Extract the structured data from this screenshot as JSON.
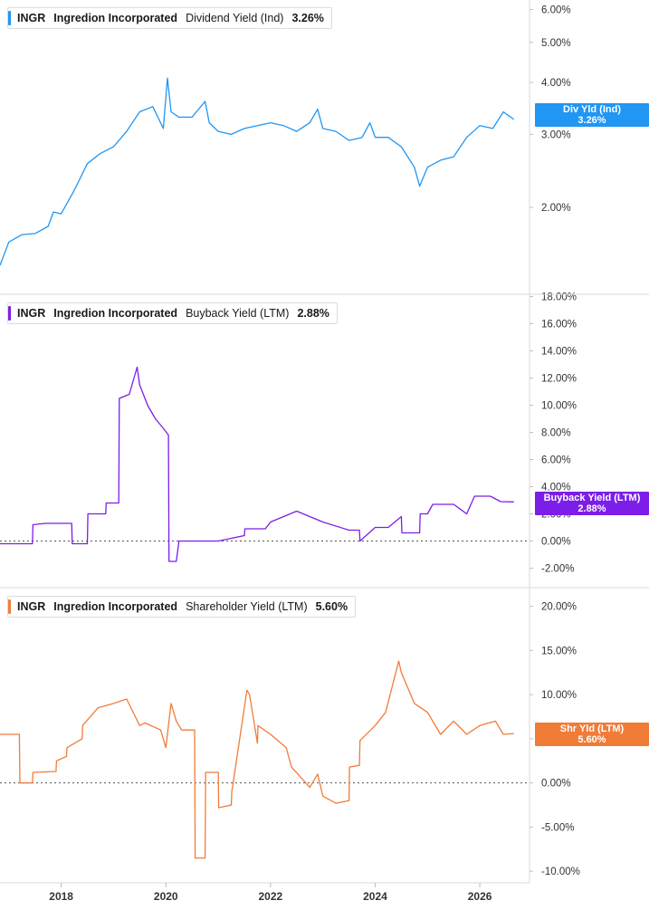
{
  "chart_data": [
    {
      "type": "line",
      "ticker": "INGR",
      "company": "Ingredion Incorporated",
      "metric": "Dividend Yield (Ind)",
      "current_value": "3.26%",
      "tag_label": "Div Yld (Ind)",
      "tag_value": "3.26%",
      "color": "#2196f3",
      "scale": "log",
      "ylim": [
        1.4,
        6.2
      ],
      "y_ticks": [
        2,
        3,
        4,
        5,
        6
      ],
      "y_tick_labels": [
        "2.00%",
        "3.00%",
        "4.00%",
        "5.00%",
        "6.00%"
      ],
      "zero_line": false,
      "x": [
        2016.83,
        2017.0,
        2017.25,
        2017.5,
        2017.75,
        2017.85,
        2018.0,
        2018.25,
        2018.5,
        2018.75,
        2019.0,
        2019.25,
        2019.5,
        2019.75,
        2019.95,
        2020.03,
        2020.1,
        2020.25,
        2020.5,
        2020.75,
        2020.83,
        2021.0,
        2021.25,
        2021.5,
        2021.75,
        2022.0,
        2022.25,
        2022.5,
        2022.75,
        2022.9,
        2023.0,
        2023.25,
        2023.5,
        2023.75,
        2023.9,
        2024.0,
        2024.25,
        2024.5,
        2024.75,
        2024.85,
        2025.0,
        2025.25,
        2025.5,
        2025.75,
        2026.0,
        2026.25,
        2026.45,
        2026.65
      ],
      "values": [
        1.45,
        1.65,
        1.72,
        1.73,
        1.8,
        1.95,
        1.93,
        2.2,
        2.55,
        2.7,
        2.8,
        3.05,
        3.4,
        3.5,
        3.1,
        4.1,
        3.4,
        3.3,
        3.3,
        3.6,
        3.2,
        3.05,
        3.0,
        3.1,
        3.15,
        3.2,
        3.15,
        3.05,
        3.2,
        3.45,
        3.1,
        3.05,
        2.9,
        2.95,
        3.2,
        2.95,
        2.95,
        2.8,
        2.5,
        2.25,
        2.5,
        2.6,
        2.65,
        2.95,
        3.15,
        3.1,
        3.4,
        3.26
      ],
      "x_ticks": [
        2018,
        2020,
        2022,
        2024,
        2026
      ],
      "x_tick_labels": [
        "2018",
        "2020",
        "2022",
        "2024",
        "2026"
      ]
    },
    {
      "type": "line",
      "ticker": "INGR",
      "company": "Ingredion Incorporated",
      "metric": "Buyback Yield (LTM)",
      "current_value": "2.88%",
      "tag_label": "Buyback Yield (LTM)",
      "tag_value": "2.88%",
      "color": "#7c1ee8",
      "scale": "linear",
      "ylim": [
        -2.7,
        18.3
      ],
      "y_ticks": [
        -2,
        0,
        2,
        4,
        6,
        8,
        10,
        12,
        14,
        16,
        18
      ],
      "y_tick_labels": [
        "-2.00%",
        "0.00%",
        "2.00%",
        "4.00%",
        "6.00%",
        "8.00%",
        "10.00%",
        "12.00%",
        "14.00%",
        "16.00%",
        "18.00%"
      ],
      "zero_line": true,
      "x": [
        2016.83,
        2017.45,
        2017.46,
        2017.7,
        2018.2,
        2018.21,
        2018.5,
        2018.51,
        2018.85,
        2018.86,
        2019.1,
        2019.11,
        2019.3,
        2019.45,
        2019.5,
        2019.65,
        2019.8,
        2019.95,
        2020.05,
        2020.06,
        2020.2,
        2020.25,
        2021.0,
        2021.5,
        2021.51,
        2021.9,
        2022.0,
        2022.25,
        2022.5,
        2022.75,
        2023.0,
        2023.5,
        2023.7,
        2023.71,
        2024.0,
        2024.25,
        2024.5,
        2024.51,
        2024.85,
        2024.86,
        2025.0,
        2025.1,
        2025.5,
        2025.75,
        2025.9,
        2026.2,
        2026.4,
        2026.65
      ],
      "values": [
        -0.2,
        -0.2,
        1.2,
        1.3,
        1.3,
        -0.2,
        -0.2,
        2.0,
        2.0,
        2.8,
        2.8,
        10.5,
        10.8,
        12.8,
        11.5,
        10.0,
        9.0,
        8.3,
        7.8,
        -1.5,
        -1.5,
        0.0,
        0.0,
        0.4,
        0.9,
        0.9,
        1.4,
        1.8,
        2.2,
        1.8,
        1.4,
        0.8,
        0.8,
        0.0,
        1.0,
        1.0,
        1.8,
        0.6,
        0.6,
        2.0,
        2.0,
        2.7,
        2.7,
        2.0,
        3.3,
        3.3,
        2.9,
        2.88
      ],
      "x_ticks": [
        2018,
        2020,
        2022,
        2024,
        2026
      ],
      "x_tick_labels": [
        "2018",
        "2020",
        "2022",
        "2024",
        "2026"
      ]
    },
    {
      "type": "line",
      "ticker": "INGR",
      "company": "Ingredion Incorporated",
      "metric": "Shareholder Yield (LTM)",
      "current_value": "5.60%",
      "tag_label": "Shr Yld (LTM)",
      "tag_value": "5.60%",
      "color": "#f07c38",
      "scale": "linear",
      "ylim": [
        -10.8,
        21.5
      ],
      "y_ticks": [
        -10,
        -5,
        0,
        5,
        10,
        15,
        20
      ],
      "y_tick_labels": [
        "-10.00%",
        "-5.00%",
        "0.00%",
        "5.00%",
        "10.00%",
        "15.00%",
        "20.00%"
      ],
      "zero_line": true,
      "x": [
        2016.83,
        2017.2,
        2017.21,
        2017.45,
        2017.46,
        2017.9,
        2017.91,
        2018.1,
        2018.11,
        2018.4,
        2018.41,
        2018.7,
        2019.0,
        2019.25,
        2019.5,
        2019.6,
        2019.9,
        2020.0,
        2020.1,
        2020.2,
        2020.3,
        2020.55,
        2020.56,
        2020.75,
        2020.76,
        2021.0,
        2021.01,
        2021.25,
        2021.26,
        2021.55,
        2021.6,
        2021.75,
        2021.76,
        2022.0,
        2022.3,
        2022.4,
        2022.75,
        2022.9,
        2023.0,
        2023.25,
        2023.5,
        2023.51,
        2023.7,
        2023.71,
        2024.0,
        2024.2,
        2024.45,
        2024.5,
        2024.75,
        2025.0,
        2025.25,
        2025.5,
        2025.75,
        2026.0,
        2026.3,
        2026.45,
        2026.65
      ],
      "values": [
        5.5,
        5.5,
        0.0,
        0.0,
        1.2,
        1.3,
        2.5,
        3.0,
        4.0,
        5.0,
        6.5,
        8.5,
        9.0,
        9.5,
        6.5,
        6.8,
        6.0,
        4.0,
        9.0,
        7.0,
        6.0,
        6.0,
        -8.5,
        -8.5,
        1.2,
        1.2,
        -2.8,
        -2.5,
        -1.0,
        10.5,
        10.0,
        4.5,
        6.5,
        5.5,
        4.0,
        1.8,
        -0.5,
        1.0,
        -1.5,
        -2.3,
        -2.0,
        1.8,
        2.0,
        4.8,
        6.5,
        8.0,
        13.8,
        12.5,
        9.0,
        8.0,
        5.5,
        7.0,
        5.5,
        6.5,
        7.0,
        5.5,
        5.6
      ],
      "x_ticks": [
        2018,
        2020,
        2022,
        2024,
        2026
      ],
      "x_tick_labels": [
        "2018",
        "2020",
        "2022",
        "2024",
        "2026"
      ]
    }
  ]
}
